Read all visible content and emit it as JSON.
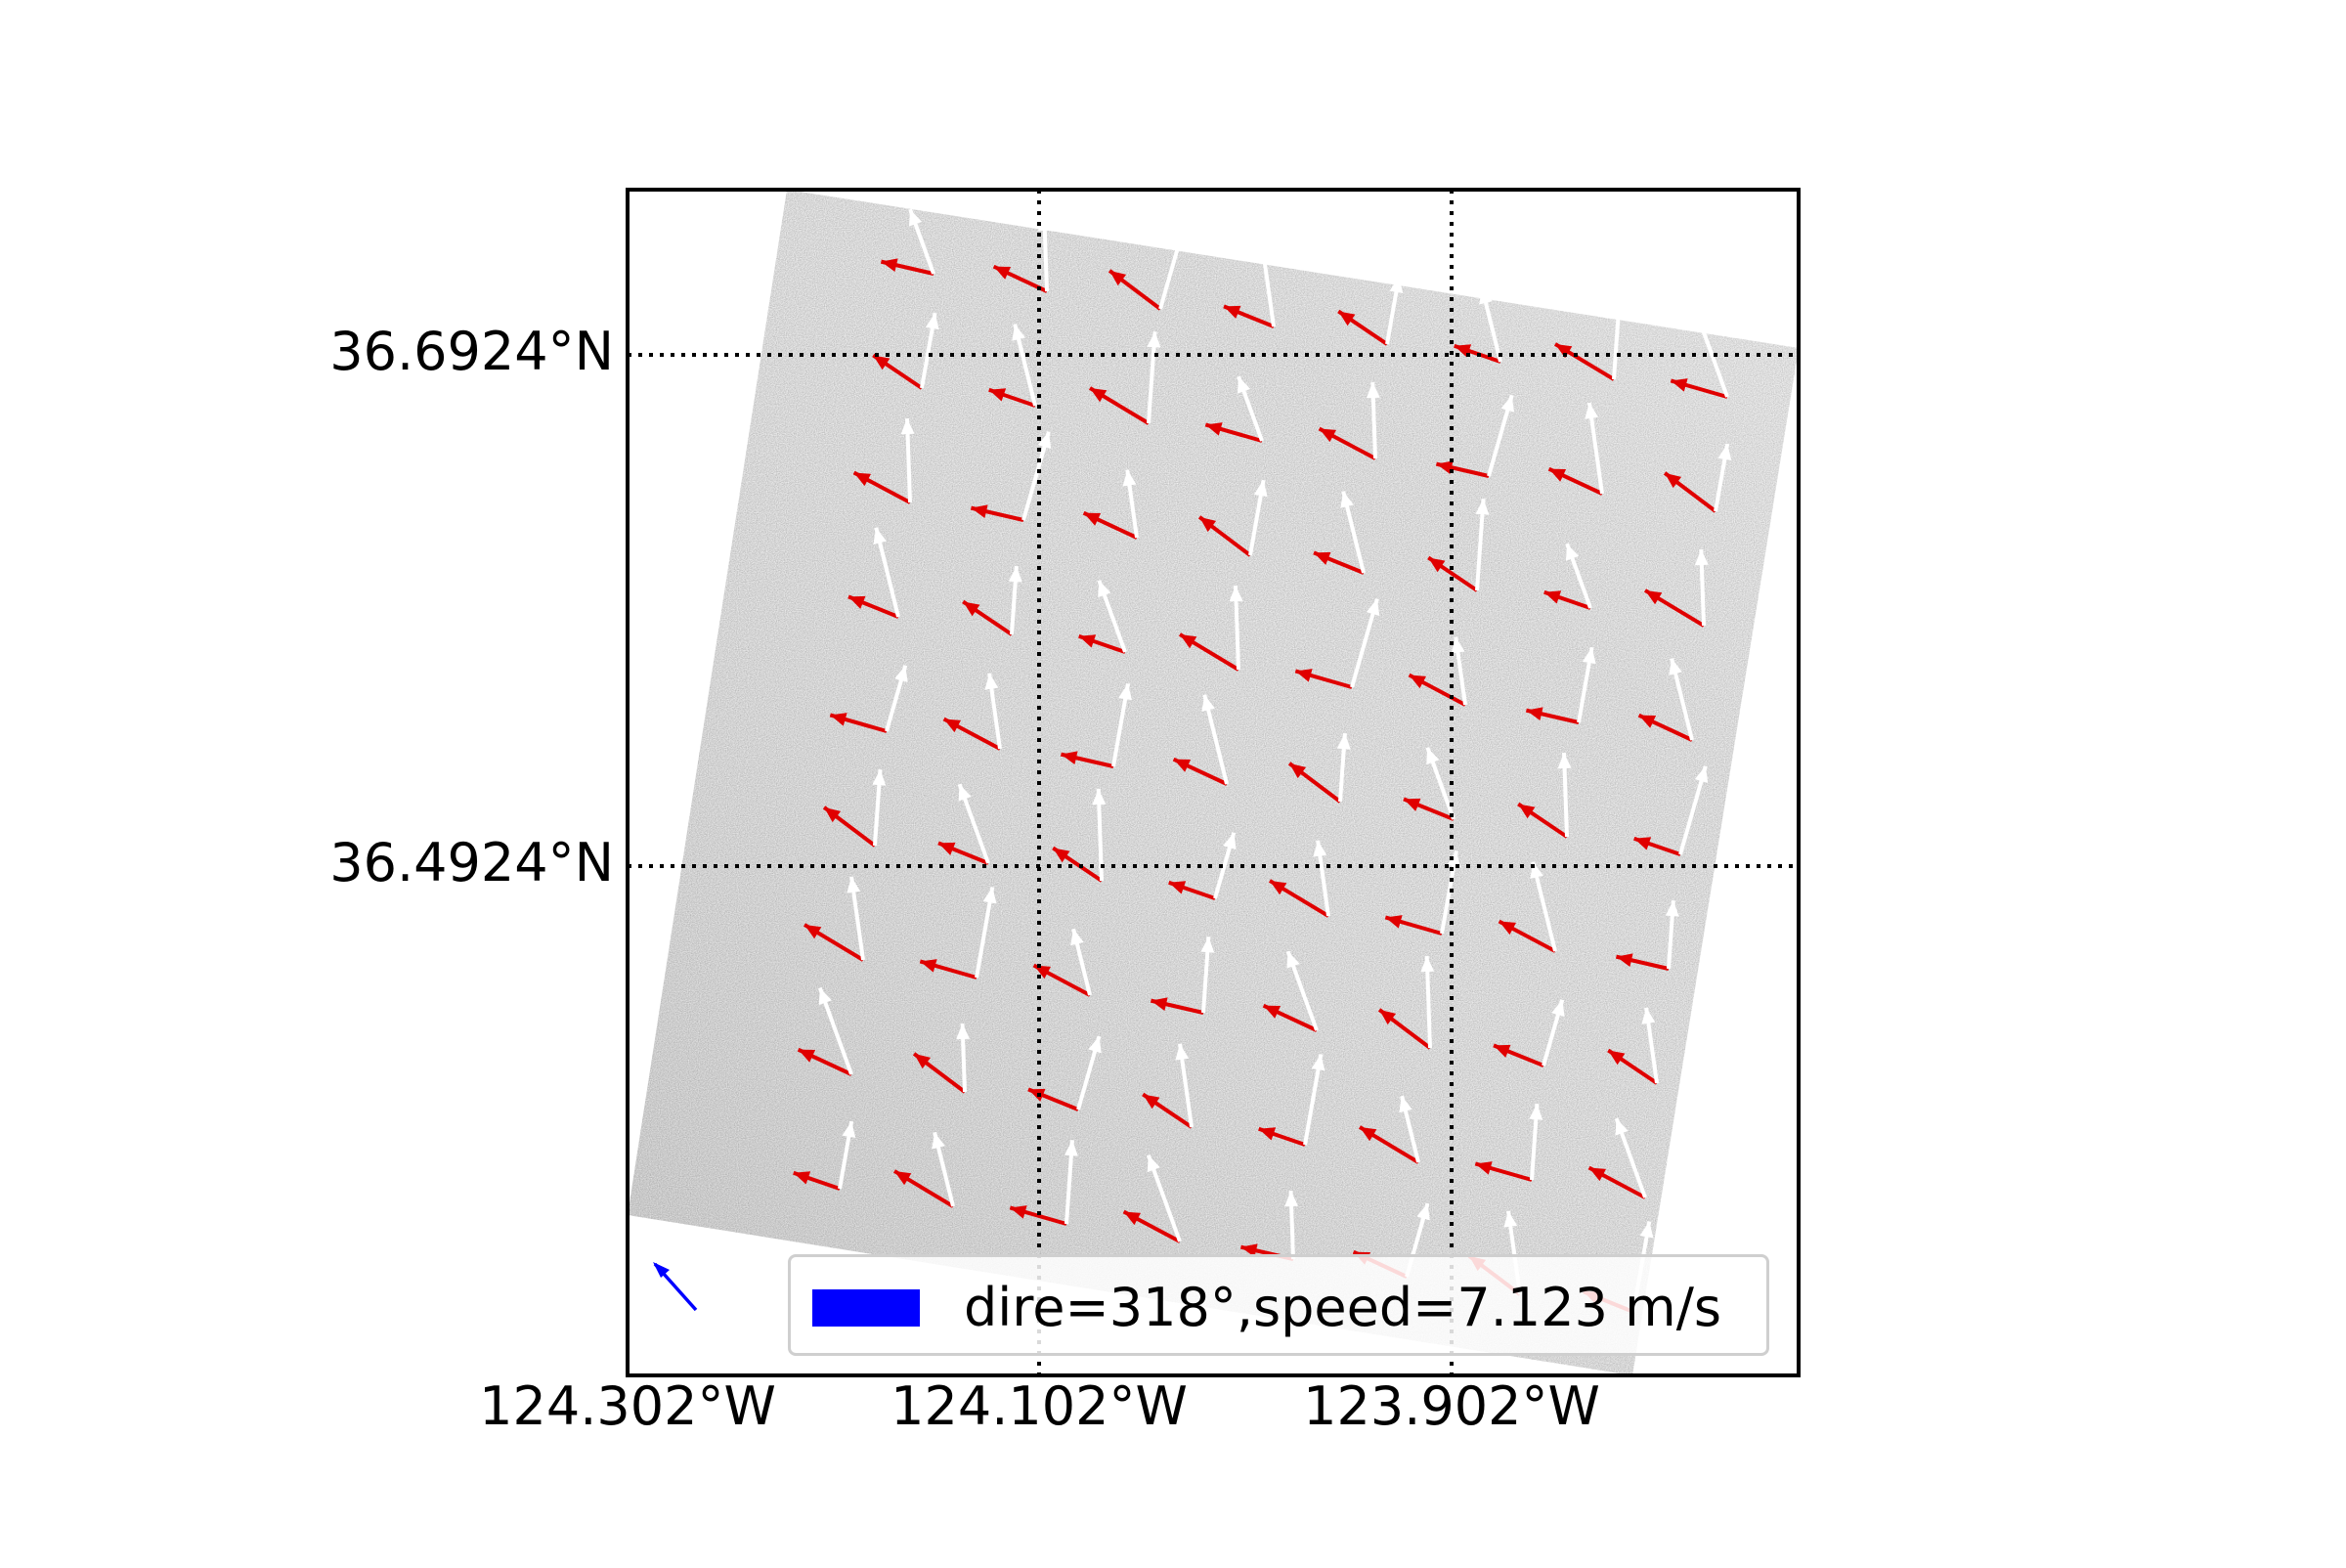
{
  "map": {
    "lat_labels": [
      "36.6924°N",
      "36.4924°N"
    ],
    "lon_labels": [
      "124.302°W",
      "124.102°W",
      "123.902°W"
    ],
    "legend": {
      "label": "dire=318°,speed=7.123 m/s",
      "swatch_color": "#0000ff"
    },
    "reference_arrow": {
      "direction_deg": 318,
      "speed_ms": 7.123,
      "color": "#0000ff"
    },
    "series_colors": {
      "red_arrows": "#e00000",
      "white_arrows": "#ffffff"
    },
    "background": "grayscale SAR image",
    "gridlines": "dotted black"
  }
}
